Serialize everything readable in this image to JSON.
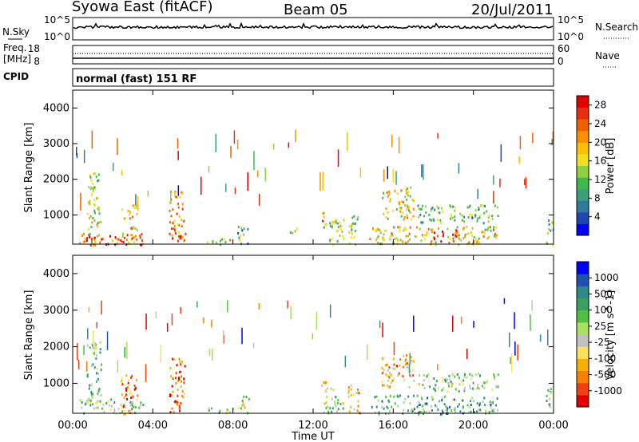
{
  "header": {
    "station": "Syowa East (fitACF)",
    "beam": "Beam 05",
    "date": "20/Jul/2011"
  },
  "noise_panel": {
    "left_label": "N.Sky",
    "right_label": "N.Search",
    "left_ticks": [
      "10^5",
      "10^0"
    ],
    "right_ticks": [
      "10^5",
      "10^0"
    ]
  },
  "freq_panel": {
    "left_label_line1": "Freq.",
    "left_label_line2": "[MHz]",
    "right_label": "Nave",
    "left_ticks": [
      "18",
      "8"
    ],
    "right_ticks": [
      "60",
      "0"
    ],
    "cpid_label": "CPID"
  },
  "mode_label": "normal (fast) 151 RF",
  "x_axis": {
    "label": "Time UT",
    "ticks": [
      "00:00",
      "04:00",
      "08:00",
      "12:00",
      "16:00",
      "20:00",
      "00:00"
    ]
  },
  "y_axis": {
    "label": "Slant Range [km]",
    "ticks": [
      "1000",
      "2000",
      "3000",
      "4000"
    ]
  },
  "colors": {
    "power": [
      "#0000ff",
      "#2046b4",
      "#2e7a9a",
      "#3aa07a",
      "#40b850",
      "#90d040",
      "#f0e020",
      "#f8c000",
      "#f89000",
      "#f06000",
      "#e83010",
      "#e00000"
    ],
    "velocity": [
      "#e00000",
      "#f04010",
      "#f88000",
      "#f8b000",
      "#f8e060",
      "#c0c0c0",
      "#a8e060",
      "#50c040",
      "#3aa060",
      "#2e8a8a",
      "#2050b0",
      "#0000ff"
    ]
  },
  "chart_data": [
    {
      "type": "heatmap",
      "title": "Power [dB]",
      "ylabel": "Slant Range [km]",
      "xlabel": "Time UT",
      "x_range_hours": [
        0,
        24
      ],
      "ylim": [
        180,
        4500
      ],
      "colorbar": {
        "label": "Power [dB]",
        "ticks": [
          "4",
          "8",
          "12",
          "16",
          "20",
          "24",
          "28"
        ],
        "range": [
          0,
          30
        ]
      },
      "echo_regions": [
        {
          "t": [
            0.7,
            1.4
          ],
          "r": [
            180,
            2200
          ],
          "level": 0.5
        },
        {
          "t": [
            0.3,
            3.5
          ],
          "r": [
            180,
            500
          ],
          "level": 0.85
        },
        {
          "t": [
            2.4,
            3.2
          ],
          "r": [
            180,
            1300
          ],
          "level": 0.65
        },
        {
          "t": [
            4.8,
            5.6
          ],
          "r": [
            180,
            1700
          ],
          "level": 0.7
        },
        {
          "t": [
            5.2,
            5.6
          ],
          "r": [
            180,
            500
          ],
          "level": 0.9
        },
        {
          "t": [
            6.6,
            8.0
          ],
          "r": [
            180,
            350
          ],
          "level": 0.55
        },
        {
          "t": [
            8.2,
            8.8
          ],
          "r": [
            180,
            700
          ],
          "level": 0.35
        },
        {
          "t": [
            10.8,
            11.3
          ],
          "r": [
            500,
            700
          ],
          "level": 0.55
        },
        {
          "t": [
            12.3,
            12.6
          ],
          "r": [
            800,
            1100
          ],
          "level": 0.75
        },
        {
          "t": [
            12.5,
            13.5
          ],
          "r": [
            180,
            900
          ],
          "level": 0.5
        },
        {
          "t": [
            13.7,
            14.3
          ],
          "r": [
            200,
            1000
          ],
          "level": 0.45
        },
        {
          "t": [
            14.8,
            21.2
          ],
          "r": [
            180,
            700
          ],
          "level": 0.6
        },
        {
          "t": [
            15.4,
            17.0
          ],
          "r": [
            900,
            1800
          ],
          "level": 0.55
        },
        {
          "t": [
            17.2,
            21.2
          ],
          "r": [
            800,
            1300
          ],
          "level": 0.35
        },
        {
          "t": [
            18.0,
            19.2
          ],
          "r": [
            180,
            600
          ],
          "level": 0.8
        },
        {
          "t": [
            23.6,
            24.0
          ],
          "r": [
            180,
            900
          ],
          "level": 0.45
        }
      ]
    },
    {
      "type": "heatmap",
      "title": "Velocity [m s^-1]",
      "ylabel": "Slant Range [km]",
      "xlabel": "Time UT",
      "x_range_hours": [
        0,
        24
      ],
      "ylim": [
        180,
        4500
      ],
      "colorbar": {
        "label": "Velocity [m s^-1]",
        "ticks": [
          "-1000",
          "-500",
          "-100",
          "-25",
          "25",
          "100",
          "500",
          "1000"
        ],
        "range": [
          -1250,
          1250
        ]
      },
      "echo_regions": [
        {
          "t": [
            0.3,
            3.5
          ],
          "r": [
            180,
            600
          ],
          "level": 0.55
        },
        {
          "t": [
            0.7,
            1.4
          ],
          "r": [
            400,
            2200
          ],
          "level": 0.6
        },
        {
          "t": [
            2.4,
            3.2
          ],
          "r": [
            180,
            1300
          ],
          "level": 0.2
        },
        {
          "t": [
            4.8,
            5.6
          ],
          "r": [
            180,
            1700
          ],
          "level": 0.15
        },
        {
          "t": [
            6.6,
            8.0
          ],
          "r": [
            180,
            350
          ],
          "level": 0.55
        },
        {
          "t": [
            8.2,
            8.8
          ],
          "r": [
            180,
            700
          ],
          "level": 0.5
        },
        {
          "t": [
            12.3,
            12.6
          ],
          "r": [
            800,
            1100
          ],
          "level": 0.3
        },
        {
          "t": [
            12.5,
            13.5
          ],
          "r": [
            180,
            900
          ],
          "level": 0.5
        },
        {
          "t": [
            13.7,
            14.3
          ],
          "r": [
            200,
            1000
          ],
          "level": 0.3
        },
        {
          "t": [
            14.8,
            21.2
          ],
          "r": [
            180,
            700
          ],
          "level": 0.65
        },
        {
          "t": [
            15.4,
            17.0
          ],
          "r": [
            900,
            1800
          ],
          "level": 0.3
        },
        {
          "t": [
            17.2,
            21.2
          ],
          "r": [
            800,
            1300
          ],
          "level": 0.55
        },
        {
          "t": [
            23.6,
            24.0
          ],
          "r": [
            180,
            900
          ],
          "level": 0.6
        }
      ]
    }
  ]
}
